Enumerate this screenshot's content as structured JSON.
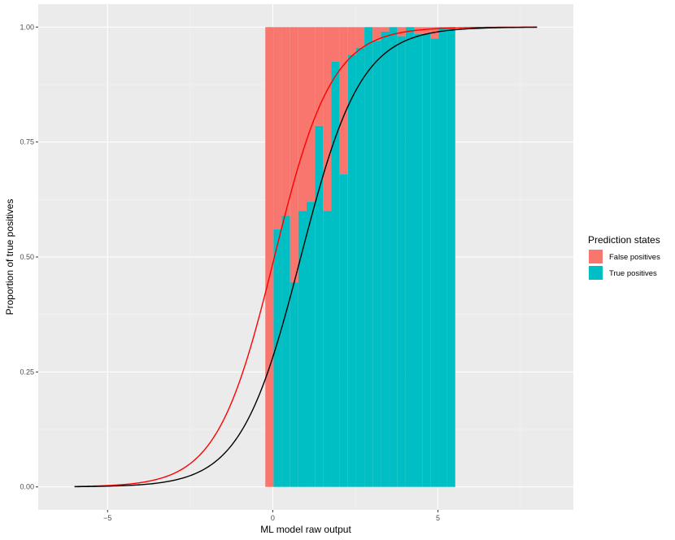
{
  "chart_data": {
    "type": "bar",
    "title": "",
    "xlabel": "ML model raw output",
    "ylabel": "Proportion of true positives",
    "xlim": [
      -7.1,
      9.1
    ],
    "ylim": [
      -0.05,
      1.05
    ],
    "x_ticks": [
      -5,
      0,
      5
    ],
    "x_tick_labels": [
      "−5",
      "0",
      "5"
    ],
    "y_ticks": [
      0,
      0.25,
      0.5,
      0.75,
      1
    ],
    "y_tick_labels": [
      "0.00",
      "0.25",
      "0.50",
      "0.75",
      "1.00"
    ],
    "grid": true,
    "legend_position": "right",
    "legend": {
      "title": "Prediction states",
      "entries": [
        {
          "label": "False positives",
          "color": "#F8766D"
        },
        {
          "label": "True positives",
          "color": "#00BFC4"
        }
      ]
    },
    "bar_width": 0.25,
    "bins": [
      {
        "x": -0.1,
        "true_positive": 0.0
      },
      {
        "x": 0.15,
        "true_positive": 0.56
      },
      {
        "x": 0.4,
        "true_positive": 0.59
      },
      {
        "x": 0.65,
        "true_positive": 0.445
      },
      {
        "x": 0.9,
        "true_positive": 0.6
      },
      {
        "x": 1.15,
        "true_positive": 0.62
      },
      {
        "x": 1.4,
        "true_positive": 0.785
      },
      {
        "x": 1.65,
        "true_positive": 0.6
      },
      {
        "x": 1.9,
        "true_positive": 0.925
      },
      {
        "x": 2.15,
        "true_positive": 0.68
      },
      {
        "x": 2.4,
        "true_positive": 0.94
      },
      {
        "x": 2.65,
        "true_positive": 0.955
      },
      {
        "x": 2.9,
        "true_positive": 1.0
      },
      {
        "x": 3.15,
        "true_positive": 0.97
      },
      {
        "x": 3.4,
        "true_positive": 0.99
      },
      {
        "x": 3.65,
        "true_positive": 1.0
      },
      {
        "x": 3.9,
        "true_positive": 0.98
      },
      {
        "x": 4.15,
        "true_positive": 1.0
      },
      {
        "x": 4.4,
        "true_positive": 0.985
      },
      {
        "x": 4.65,
        "true_positive": 0.985
      },
      {
        "x": 4.9,
        "true_positive": 0.975
      },
      {
        "x": 5.15,
        "true_positive": 1.0
      },
      {
        "x": 5.4,
        "true_positive": 1.0
      }
    ],
    "curves": [
      {
        "color": "#FF0000",
        "x_range": [
          -6,
          8
        ],
        "midpoint": 0.05,
        "slope": 1.15
      },
      {
        "color": "#000000",
        "x_range": [
          -6,
          8
        ],
        "midpoint": 0.85,
        "slope": 1.1
      }
    ]
  }
}
